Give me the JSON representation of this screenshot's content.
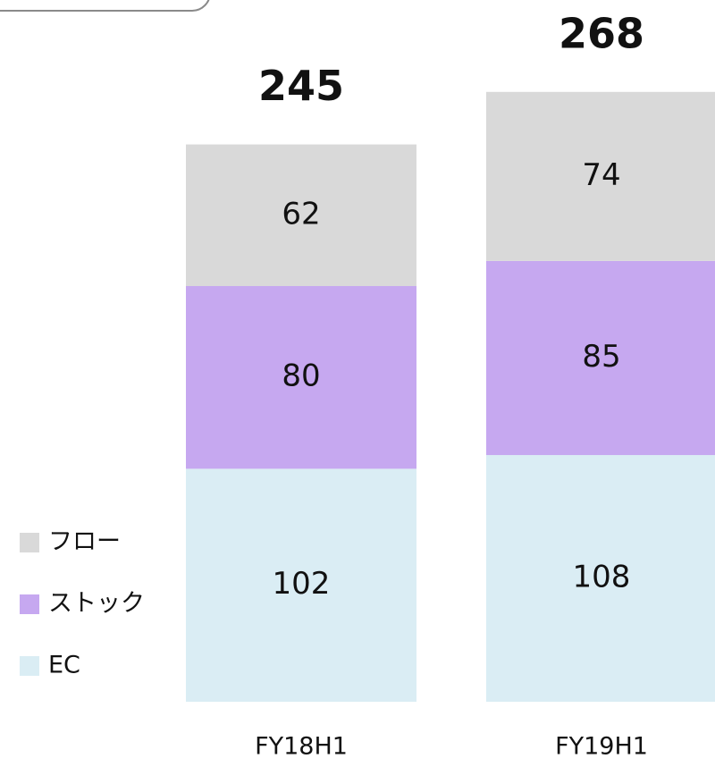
{
  "chart_data": {
    "type": "stacked_bar",
    "categories": [
      "FY18H1",
      "FY19H1"
    ],
    "series": [
      {
        "name": "EC",
        "color": "#daedf4",
        "values": [
          102,
          108
        ]
      },
      {
        "name": "ストック",
        "color": "#c6a8f0",
        "values": [
          80,
          85
        ]
      },
      {
        "name": "フロー",
        "color": "#d9d9d9",
        "values": [
          62,
          74
        ]
      }
    ],
    "totals": [
      245,
      268
    ]
  }
}
